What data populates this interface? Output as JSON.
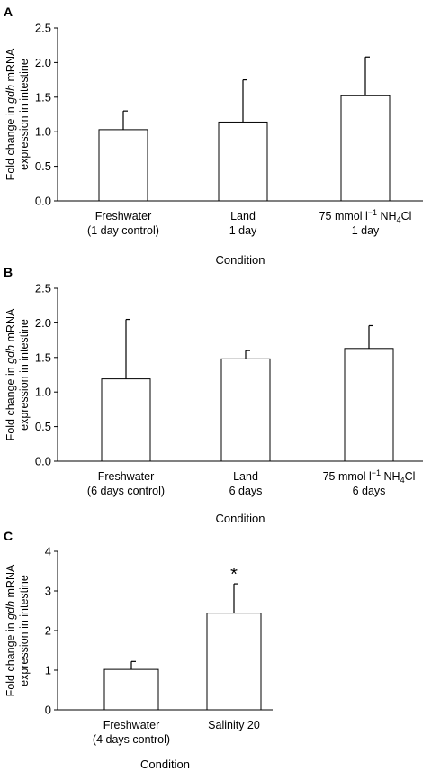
{
  "chart_data": [
    {
      "panel": "A",
      "type": "bar",
      "categories": [
        [
          "Freshwater",
          "(1 day control)"
        ],
        [
          "Land",
          "1 day"
        ],
        [
          "75 mmol l",
          "1 day"
        ]
      ],
      "nh4cl_label": {
        "unit_exp": "−1",
        "compound": "NH",
        "sub": "4",
        "tail": "Cl"
      },
      "values": [
        1.03,
        1.14,
        1.52
      ],
      "errors": [
        0.27,
        0.61,
        0.56
      ],
      "annotations": [],
      "ylabel": [
        "Fold change in gdh mRNA",
        "expression in intestine"
      ],
      "xlabel": "Condition",
      "ylim": [
        0,
        2.5
      ],
      "yticks": [
        "0.0",
        "0.5",
        "1.0",
        "1.5",
        "2.0",
        "2.5"
      ]
    },
    {
      "panel": "B",
      "type": "bar",
      "categories": [
        [
          "Freshwater",
          "(6 days control)"
        ],
        [
          "Land",
          "6 days"
        ],
        [
          "75 mmol l",
          "6 days"
        ]
      ],
      "nh4cl_label": {
        "unit_exp": "−1",
        "compound": "NH",
        "sub": "4",
        "tail": "Cl"
      },
      "values": [
        1.19,
        1.48,
        1.63
      ],
      "errors": [
        0.86,
        0.12,
        0.33
      ],
      "annotations": [],
      "ylabel": [
        "Fold change in gdh mRNA",
        "expression in intestine"
      ],
      "xlabel": "Condition",
      "ylim": [
        0,
        2.5
      ],
      "yticks": [
        "0.0",
        "0.5",
        "1.0",
        "1.5",
        "2.0",
        "2.5"
      ]
    },
    {
      "panel": "C",
      "type": "bar",
      "categories": [
        [
          "Freshwater",
          "(4 days control)"
        ],
        [
          "Salinity 20",
          ""
        ]
      ],
      "values": [
        1.02,
        2.44
      ],
      "errors": [
        0.2,
        0.74
      ],
      "annotations": [
        "",
        "*"
      ],
      "ylabel": [
        "Fold change in gdh mRNA",
        "expression in intestine"
      ],
      "xlabel": "Condition",
      "ylim": [
        0,
        4
      ],
      "yticks": [
        "0",
        "1",
        "2",
        "3",
        "4"
      ]
    }
  ]
}
